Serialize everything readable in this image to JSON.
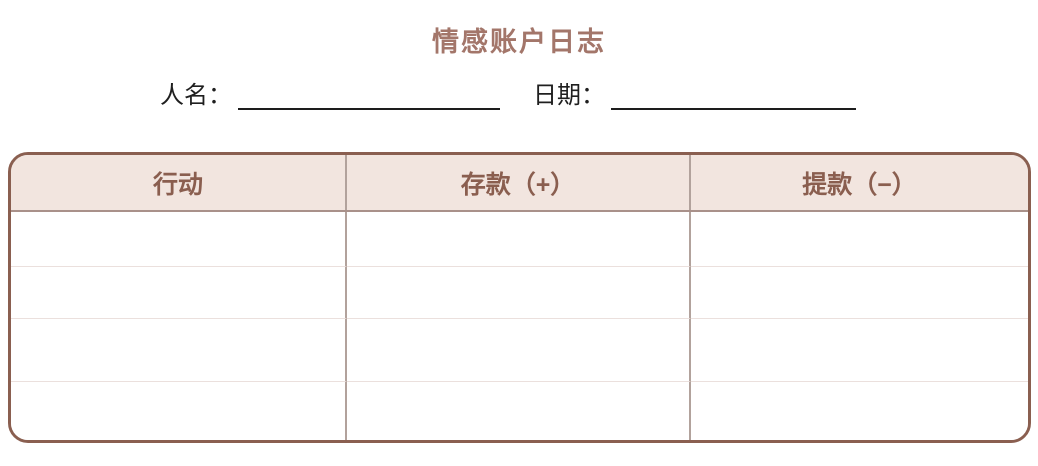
{
  "page": {
    "title": "情感账户日志",
    "colors": {
      "accent_title": "#a3766a",
      "table_border": "#8a5f50",
      "header_background": "#f2e5df",
      "header_text": "#8a5e4f",
      "column_divider": "#b2a29c",
      "row_divider": "#ebe0dd",
      "label_text": "#1f1f1f"
    }
  },
  "fields": {
    "name_label": "人名：",
    "name_value": "",
    "date_label": "日期：",
    "date_value": ""
  },
  "table": {
    "headers": [
      "行动",
      "存款（+）",
      "提款（−）"
    ],
    "rows": [
      [
        "",
        "",
        ""
      ],
      [
        "",
        "",
        ""
      ],
      [
        "",
        "",
        ""
      ],
      [
        "",
        "",
        ""
      ]
    ]
  }
}
